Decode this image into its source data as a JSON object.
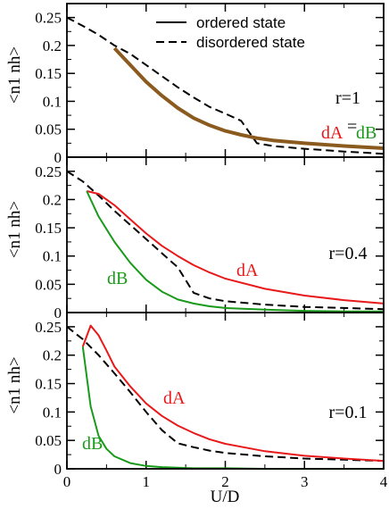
{
  "chart_data": {
    "type": "line",
    "xlabel": "U/D",
    "x_ticks": [
      "0",
      "1",
      "2",
      "3",
      "4"
    ],
    "y_ticks": [
      "0",
      "0.05",
      "0.1",
      "0.15",
      "0.2",
      "0.25"
    ],
    "xlim": [
      0,
      4
    ],
    "ylim": [
      0,
      0.275
    ],
    "legend": {
      "placement": "top-center",
      "entries": [
        {
          "label": "ordered state",
          "style": "solid"
        },
        {
          "label": "disordered state",
          "style": "dashed"
        }
      ]
    },
    "colors": {
      "dA": "#e8191a",
      "dB": "#1a9a1a",
      "overlap": "#8b5a1e",
      "disordered": "#000000"
    },
    "panels": [
      {
        "ylabel": "<n1 nh>",
        "r_label": "r=1",
        "annotation": {
          "dA": "dA",
          "eq": "=",
          "dB": "dB"
        },
        "series": [
          {
            "name": "disordered state",
            "style": "dashed",
            "color": "#000000",
            "x": [
              0,
              0.2,
              0.4,
              0.6,
              0.8,
              1.0,
              1.2,
              1.4,
              1.6,
              1.8,
              2.0,
              2.2,
              2.4,
              2.6,
              3.0,
              3.5,
              4.0
            ],
            "y": [
              0.25,
              0.235,
              0.219,
              0.2,
              0.185,
              0.165,
              0.145,
              0.125,
              0.107,
              0.09,
              0.078,
              0.065,
              0.025,
              0.02,
              0.015,
              0.01,
              0.006
            ]
          },
          {
            "name": "ordered state (dA = dB)",
            "style": "solid",
            "color": "#8b5a1e",
            "x": [
              0.6,
              0.8,
              1.0,
              1.2,
              1.4,
              1.6,
              1.8,
              2.0,
              2.2,
              2.4,
              2.6,
              3.0,
              3.5,
              4.0
            ],
            "y": [
              0.195,
              0.165,
              0.135,
              0.11,
              0.088,
              0.07,
              0.057,
              0.047,
              0.04,
              0.034,
              0.03,
              0.025,
              0.02,
              0.016
            ]
          }
        ]
      },
      {
        "ylabel": "<n1 nh>",
        "r_label": "r=0.4",
        "annotation": {
          "dA": "dA",
          "dB": "dB"
        },
        "series": [
          {
            "name": "disordered state",
            "style": "dashed",
            "color": "#000000",
            "x": [
              0,
              0.2,
              0.4,
              0.6,
              0.8,
              1.0,
              1.2,
              1.4,
              1.6,
              1.8,
              2.0,
              2.5,
              3.0,
              3.5,
              4.0
            ],
            "y": [
              0.25,
              0.232,
              0.207,
              0.18,
              0.155,
              0.13,
              0.105,
              0.08,
              0.035,
              0.025,
              0.02,
              0.014,
              0.01,
              0.008,
              0.006
            ]
          },
          {
            "name": "dA",
            "style": "solid",
            "color": "#e8191a",
            "x": [
              0.25,
              0.4,
              0.6,
              0.8,
              1.0,
              1.2,
              1.4,
              1.6,
              1.8,
              2.0,
              2.5,
              3.0,
              3.5,
              4.0
            ],
            "y": [
              0.215,
              0.21,
              0.19,
              0.165,
              0.14,
              0.118,
              0.1,
              0.084,
              0.071,
              0.06,
              0.042,
              0.03,
              0.022,
              0.016
            ]
          },
          {
            "name": "dB",
            "style": "solid",
            "color": "#1a9a1a",
            "x": [
              0.25,
              0.4,
              0.6,
              0.8,
              1.0,
              1.2,
              1.4,
              1.6,
              1.8,
              2.0,
              2.5,
              3.0,
              3.5,
              4.0
            ],
            "y": [
              0.215,
              0.17,
              0.125,
              0.088,
              0.058,
              0.037,
              0.023,
              0.016,
              0.011,
              0.008,
              0.005,
              0.003,
              0.002,
              0.002
            ]
          }
        ]
      },
      {
        "ylabel": "<n1 nh>",
        "r_label": "r=0.1",
        "annotation": {
          "dA": "dA",
          "dB": "dB"
        },
        "series": [
          {
            "name": "disordered state",
            "style": "dashed",
            "color": "#000000",
            "x": [
              0,
              0.2,
              0.4,
              0.6,
              0.8,
              1.0,
              1.2,
              1.4,
              1.6,
              1.8,
              2.0,
              2.5,
              3.0,
              3.5,
              4.0
            ],
            "y": [
              0.25,
              0.228,
              0.2,
              0.168,
              0.135,
              0.1,
              0.068,
              0.045,
              0.038,
              0.032,
              0.028,
              0.022,
              0.018,
              0.016,
              0.014
            ]
          },
          {
            "name": "dA",
            "style": "solid",
            "color": "#e8191a",
            "x": [
              0.2,
              0.3,
              0.4,
              0.5,
              0.6,
              0.8,
              1.0,
              1.2,
              1.4,
              1.6,
              1.8,
              2.0,
              2.5,
              3.0,
              3.5,
              4.0
            ],
            "y": [
              0.215,
              0.252,
              0.235,
              0.208,
              0.18,
              0.145,
              0.115,
              0.093,
              0.076,
              0.063,
              0.052,
              0.044,
              0.031,
              0.023,
              0.018,
              0.014
            ]
          },
          {
            "name": "dB",
            "style": "solid",
            "color": "#1a9a1a",
            "x": [
              0.2,
              0.3,
              0.4,
              0.5,
              0.6,
              0.8,
              1.0,
              1.2,
              1.4,
              1.6,
              1.8,
              2.0,
              2.5,
              3.0,
              3.5,
              4.0
            ],
            "y": [
              0.215,
              0.11,
              0.058,
              0.035,
              0.022,
              0.01,
              0.005,
              0.003,
              0.002,
              0.001,
              0.001,
              0.001,
              0.0,
              0.0,
              0.0,
              0.0
            ]
          }
        ]
      }
    ]
  }
}
